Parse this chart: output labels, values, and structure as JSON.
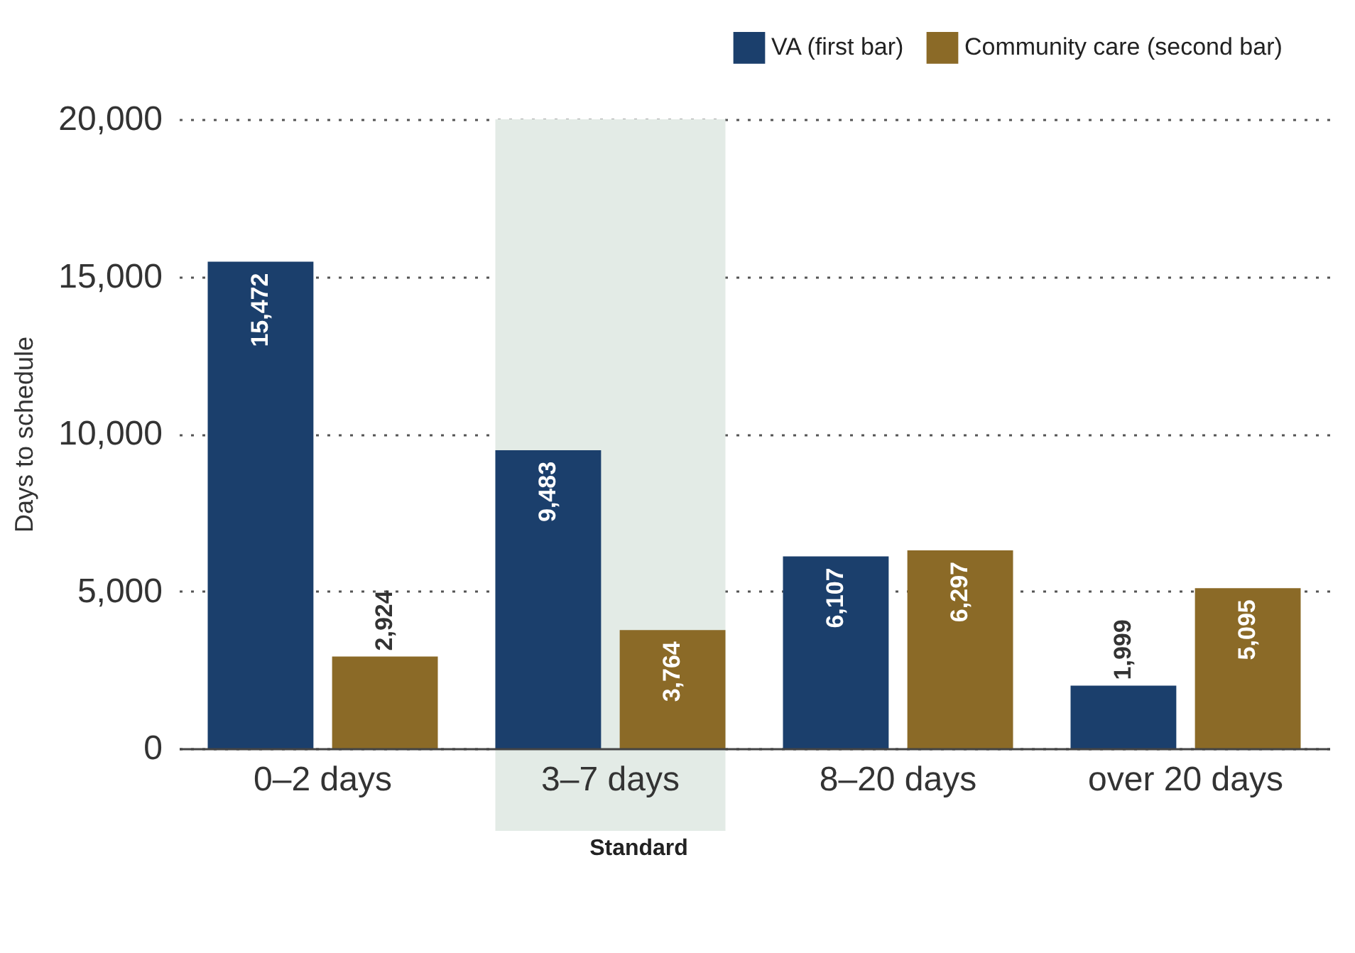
{
  "chart_data": {
    "type": "bar",
    "ylabel": "Days to schedule",
    "categories": [
      "0–2 days",
      "3–7 days",
      "8–20 days",
      "over 20 days"
    ],
    "series": [
      {
        "name": "VA (first bar)",
        "color": "#1b3f6c",
        "values": [
          15472,
          9483,
          6107,
          1999
        ],
        "value_labels": [
          "15,472",
          "9,483",
          "6,107",
          "1,999"
        ]
      },
      {
        "name": "Community care (second bar)",
        "color": "#8b6a27",
        "values": [
          2924,
          3764,
          6297,
          5095
        ],
        "value_labels": [
          "2,924",
          "3,764",
          "6,297",
          "5,095"
        ]
      }
    ],
    "ylim": [
      0,
      20000
    ],
    "yticks": [
      {
        "value": 0,
        "label": "0"
      },
      {
        "value": 5000,
        "label": "5,000"
      },
      {
        "value": 10000,
        "label": "10,000"
      },
      {
        "value": 15000,
        "label": "15,000"
      },
      {
        "value": 20000,
        "label": "20,000"
      }
    ],
    "grid": "y",
    "legend": "top right",
    "bands": [
      {
        "axis": "x",
        "from": "3–7 days",
        "to": "3–7 days",
        "label": "Standard",
        "color": "#e3ebe6"
      }
    ]
  }
}
